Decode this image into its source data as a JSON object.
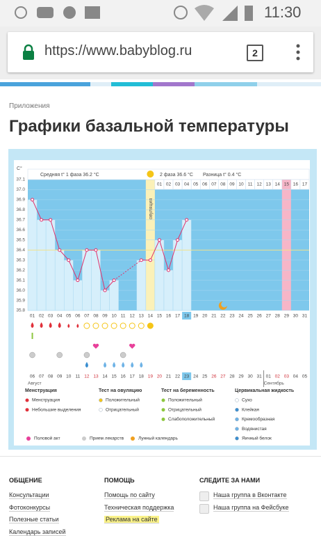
{
  "status_bar": {
    "time": "11:30"
  },
  "browser": {
    "url": "https://www.babyblog.ru",
    "tab_count": "2"
  },
  "breadcrumb": "Приложения",
  "title": "Графики базальной температуры",
  "chart_data": {
    "type": "line",
    "y_label": "C°",
    "stats": [
      "Средняя t° 1 фаза 36.2 °C",
      "2 фаза 36.6 °C",
      "Разница t° 0.4 °C"
    ],
    "ovulation_label": "овуляция",
    "categories": [
      "01",
      "02",
      "03",
      "04",
      "05",
      "06",
      "07",
      "08",
      "09",
      "10",
      "11",
      "12",
      "13",
      "14",
      "15",
      "16",
      "17",
      "18",
      "19",
      "20",
      "21",
      "22",
      "23",
      "24",
      "25",
      "26",
      "27",
      "28",
      "29",
      "30",
      "31"
    ],
    "values": [
      36.9,
      36.7,
      36.7,
      36.4,
      36.3,
      36.1,
      36.4,
      36.4,
      36.0,
      36.1,
      null,
      null,
      36.3,
      36.3,
      36.5,
      36.2,
      36.5,
      36.7,
      null,
      null,
      null,
      null,
      null,
      null,
      null,
      null,
      null,
      null,
      null,
      null,
      null
    ],
    "color": "#e0306a",
    "ylim": [
      35.8,
      37.1
    ],
    "yticks": [
      35.8,
      35.9,
      {
        "value": 36,
        "label": "36.0"
      },
      36.1,
      36.2,
      36.3,
      36.4,
      36.5,
      36.6,
      36.7,
      36.8,
      36.9,
      {
        "value": 37,
        "label": "37.0"
      },
      37.1
    ],
    "coverline": 36.4,
    "phase2_days": [
      "01",
      "02",
      "03",
      "04",
      "05",
      "06",
      "07",
      "08",
      "09",
      "10",
      "11",
      "12",
      "13",
      "14",
      "15",
      "16",
      "17"
    ],
    "dates": [
      "06",
      "07",
      "08",
      "09",
      "10",
      "11",
      "12",
      "13",
      "14",
      "15",
      "16",
      "17",
      "18",
      "19",
      "20",
      "21",
      "22",
      "23",
      "24",
      "25",
      "26",
      "27",
      "28",
      "29",
      "30",
      "31",
      "01",
      "02",
      "03",
      "04",
      "05"
    ],
    "months": [
      "Август",
      "Сентябрь"
    ]
  },
  "legend": {
    "groups": [
      {
        "title": "Менструация",
        "items": [
          "Менструация",
          "Небольшие выделения"
        ]
      },
      {
        "title": "Тест на овуляцию",
        "items": [
          "Положительный",
          "Отрицательный"
        ]
      },
      {
        "title": "Тест на беременность",
        "items": [
          "Положительный",
          "Отрицательный",
          "Слабоположительный"
        ]
      },
      {
        "title": "Цервикальная жидкость",
        "items": [
          "Сухо",
          "Клейкая",
          "Кремообразная",
          "Водянистая",
          "Яичный белок"
        ]
      }
    ],
    "extra": [
      "Половой акт",
      "Прием лекарств",
      "Лунный календарь"
    ]
  },
  "footer": {
    "columns": [
      {
        "title": "ОБЩЕНИЕ",
        "links": [
          "Консультации",
          "Фотоконкурсы",
          "Полезные статьи",
          "Календарь записей"
        ]
      },
      {
        "title": "ПОМОЩЬ",
        "links": [
          "Помощь по сайту",
          "Техническая поддержка",
          "Реклама на сайте"
        ]
      },
      {
        "title": "СЛЕДИТЕ ЗА НАМИ",
        "links": [
          "Наша группа в Вконтакте",
          "Наша группа на Фейсбуке"
        ]
      }
    ]
  }
}
